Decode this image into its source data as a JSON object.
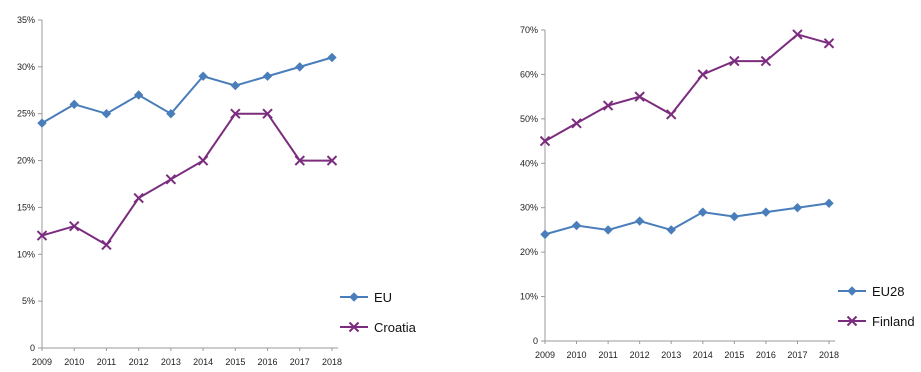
{
  "colors": {
    "series_blue": "#4a7ebb",
    "series_purple": "#7b2c7e",
    "axis": "#9a9a9a"
  },
  "chart_data": [
    {
      "type": "line",
      "x": [
        "2009",
        "2010",
        "2011",
        "2012",
        "2013",
        "2014",
        "2015",
        "2016",
        "2017",
        "2018"
      ],
      "y_ticks": [
        "0",
        "5%",
        "10%",
        "15%",
        "20%",
        "25%",
        "30%",
        "35%"
      ],
      "ylim": [
        0,
        35
      ],
      "grid": false,
      "legend_position": "bottom-right",
      "series": [
        {
          "name": "EU",
          "marker": "diamond",
          "color": "#4a7ebb",
          "values": [
            24,
            26,
            25,
            27,
            25,
            29,
            28,
            29,
            30,
            31
          ]
        },
        {
          "name": "Croatia",
          "marker": "x",
          "color": "#7b2c7e",
          "values": [
            12,
            13,
            11,
            16,
            18,
            20,
            25,
            25,
            20,
            20
          ]
        }
      ]
    },
    {
      "type": "line",
      "x": [
        "2009",
        "2010",
        "2011",
        "2012",
        "2013",
        "2014",
        "2015",
        "2016",
        "2017",
        "2018"
      ],
      "y_ticks": [
        "0",
        "10%",
        "20%",
        "30%",
        "40%",
        "50%",
        "60%",
        "70%"
      ],
      "ylim": [
        0,
        70
      ],
      "grid": false,
      "legend_position": "bottom-right",
      "series": [
        {
          "name": "EU28",
          "marker": "diamond",
          "color": "#4a7ebb",
          "values": [
            24,
            26,
            25,
            27,
            25,
            29,
            28,
            29,
            30,
            31
          ]
        },
        {
          "name": "Finland",
          "marker": "x",
          "color": "#7b2c7e",
          "values": [
            45,
            49,
            53,
            55,
            51,
            60,
            63,
            63,
            69,
            67
          ]
        }
      ]
    }
  ]
}
